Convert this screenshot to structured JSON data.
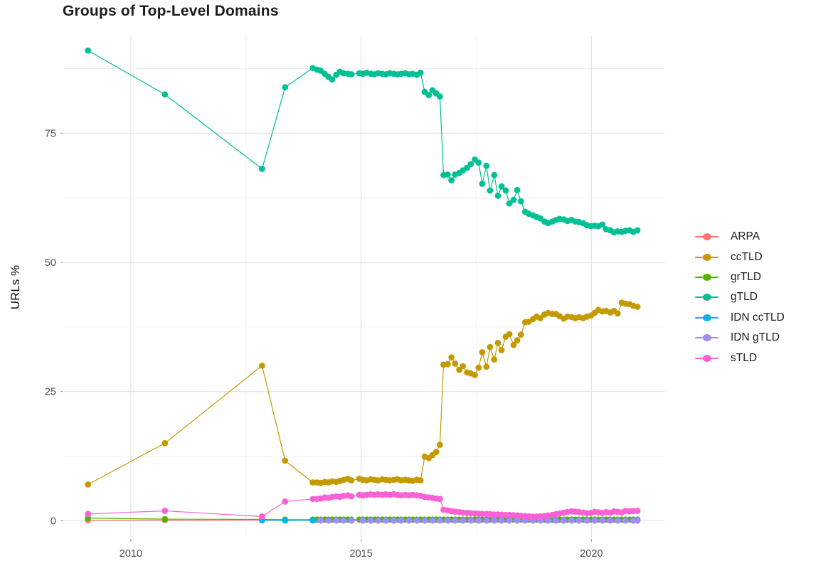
{
  "title": "Groups of Top-Level Domains",
  "axes": {
    "y_title": "URLs %",
    "y_tick_labels": [
      "0",
      "25",
      "50",
      "75"
    ],
    "x_tick_labels": [
      "2010",
      "2015",
      "2020"
    ]
  },
  "legend": {
    "position": "right",
    "items": [
      {
        "label": "ARPA",
        "color": "#F8766D"
      },
      {
        "label": "ccTLD",
        "color": "#C49A00"
      },
      {
        "label": "grTLD",
        "color": "#53B400"
      },
      {
        "label": "gTLD",
        "color": "#00C094"
      },
      {
        "label": "IDN ccTLD",
        "color": "#00B6EB"
      },
      {
        "label": "IDN gTLD",
        "color": "#A58AFF"
      },
      {
        "label": "sTLD",
        "color": "#FB61D7"
      }
    ]
  },
  "chart_data": {
    "type": "line",
    "title": "Groups of Top-Level Domains",
    "xlabel": "",
    "ylabel": "URLs %",
    "xlim": [
      2008.55,
      2021.6
    ],
    "ylim": [
      -3.4,
      93.9
    ],
    "x_major_ticks": [
      2010,
      2015,
      2020
    ],
    "x_minor_ticks": [
      2012.5,
      2017.5
    ],
    "y_major_ticks": [
      0,
      25,
      50,
      75
    ],
    "y_minor_ticks": [
      12.5,
      37.5,
      62.5,
      87.5
    ],
    "grid": true,
    "legend_position": "right",
    "x_common": [
      2009.07,
      2010.74,
      2012.85,
      2013.35,
      2013.95,
      2014.04,
      2014.12,
      2014.21,
      2014.29,
      2014.37,
      2014.46,
      2014.54,
      2014.62,
      2014.71,
      2014.79,
      2014.96,
      2015.04,
      2015.12,
      2015.21,
      2015.29,
      2015.37,
      2015.46,
      2015.54,
      2015.62,
      2015.71,
      2015.79,
      2015.87,
      2015.96,
      2016.04,
      2016.12,
      2016.21,
      2016.29,
      2016.38,
      2016.47,
      2016.55,
      2016.63,
      2016.71,
      2016.79,
      2016.88,
      2016.96,
      2017.04,
      2017.13,
      2017.21,
      2017.3,
      2017.38,
      2017.47,
      2017.55,
      2017.63,
      2017.72,
      2017.8,
      2017.89,
      2017.97,
      2018.05,
      2018.14,
      2018.22,
      2018.31,
      2018.39,
      2018.47,
      2018.56,
      2018.64,
      2018.73,
      2018.81,
      2018.89,
      2018.98,
      2019.06,
      2019.15,
      2019.23,
      2019.31,
      2019.4,
      2019.48,
      2019.57,
      2019.65,
      2019.73,
      2019.82,
      2019.9,
      2019.99,
      2020.07,
      2020.15,
      2020.24,
      2020.32,
      2020.41,
      2020.49,
      2020.57,
      2020.66,
      2020.74,
      2020.83,
      2020.91,
      2021.0
    ],
    "series": [
      {
        "name": "ARPA",
        "color": "#F8766D",
        "x": [
          2009.07,
          2010.74,
          2012.85,
          2013.35,
          2013.95,
          2014.12,
          2014.29,
          2014.46,
          2014.62,
          2014.79,
          2015.04,
          2015.21,
          2015.37,
          2015.54,
          2015.71,
          2015.87,
          2016.04,
          2016.21,
          2016.38,
          2016.55,
          2016.71,
          2016.88,
          2017.04,
          2017.21,
          2017.38,
          2017.55,
          2017.72,
          2017.89,
          2018.05,
          2018.22,
          2018.39,
          2018.56,
          2018.73,
          2018.89,
          2019.06,
          2019.23,
          2019.4,
          2019.57,
          2019.73,
          2019.9,
          2020.07,
          2020.24,
          2020.41,
          2020.57,
          2020.74,
          2020.91,
          2021.0
        ],
        "y": [
          0.1,
          0.1,
          0.08,
          0.06,
          0.05,
          0.05,
          0.05,
          0.05,
          0.05,
          0.05,
          0.05,
          0.05,
          0.05,
          0.05,
          0.05,
          0.05,
          0.05,
          0.05,
          0.05,
          0.05,
          0.05,
          0.05,
          0.05,
          0.05,
          0.05,
          0.05,
          0.05,
          0.05,
          0.05,
          0.05,
          0.05,
          0.05,
          0.05,
          0.05,
          0.05,
          0.05,
          0.05,
          0.05,
          0.05,
          0.05,
          0.05,
          0.05,
          0.05,
          0.05,
          0.05,
          0.05,
          0.05
        ]
      },
      {
        "name": "ccTLD",
        "color": "#C49A00",
        "x": "common",
        "y": [
          7.0,
          15.0,
          30.0,
          11.6,
          7.4,
          7.4,
          7.3,
          7.5,
          7.4,
          7.6,
          7.5,
          7.7,
          7.9,
          8.1,
          7.8,
          8.1,
          7.9,
          7.8,
          8.0,
          7.9,
          7.8,
          8.0,
          7.9,
          7.8,
          7.9,
          8.0,
          7.8,
          7.9,
          7.8,
          7.7,
          7.9,
          7.8,
          12.4,
          12.1,
          12.7,
          13.3,
          14.7,
          30.2,
          30.3,
          31.6,
          30.4,
          29.2,
          29.9,
          28.7,
          28.5,
          28.2,
          29.6,
          32.6,
          29.8,
          33.6,
          31.2,
          34.4,
          33.0,
          35.6,
          36.1,
          34.0,
          34.9,
          36.0,
          38.4,
          38.5,
          39.0,
          39.5,
          39.2,
          39.9,
          40.2,
          40.0,
          40.0,
          39.6,
          39.1,
          39.5,
          39.4,
          39.2,
          39.4,
          39.2,
          39.5,
          39.7,
          40.2,
          40.8,
          40.5,
          40.6,
          40.3,
          40.6,
          40.1,
          42.2,
          42.0,
          41.9,
          41.6,
          41.4
        ]
      },
      {
        "name": "grTLD",
        "color": "#53B400",
        "x": "common",
        "y": [
          0.5,
          0.3,
          0.25,
          0.2,
          0.2,
          0.2,
          0.2,
          0.2,
          0.2,
          0.2,
          0.2,
          0.2,
          0.2,
          0.2,
          0.2,
          0.2,
          0.2,
          0.2,
          0.2,
          0.2,
          0.2,
          0.2,
          0.2,
          0.2,
          0.2,
          0.2,
          0.2,
          0.2,
          0.2,
          0.2,
          0.2,
          0.2,
          0.2,
          0.2,
          0.2,
          0.2,
          0.2,
          0.2,
          0.2,
          0.2,
          0.2,
          0.2,
          0.2,
          0.2,
          0.2,
          0.2,
          0.2,
          0.2,
          0.2,
          0.2,
          0.2,
          0.2,
          0.2,
          0.2,
          0.2,
          0.2,
          0.2,
          0.2,
          0.2,
          0.2,
          0.2,
          0.2,
          0.2,
          0.2,
          0.2,
          0.2,
          0.2,
          0.2,
          0.2,
          0.2,
          0.2,
          0.2,
          0.2,
          0.2,
          0.2,
          0.2,
          0.2,
          0.2,
          0.2,
          0.2,
          0.2,
          0.2,
          0.2,
          0.2,
          0.2,
          0.2,
          0.2,
          0.2
        ]
      },
      {
        "name": "gTLD",
        "color": "#00C094",
        "x": "common",
        "y": [
          91.0,
          82.5,
          68.1,
          83.9,
          87.6,
          87.3,
          87.1,
          86.5,
          85.9,
          85.4,
          86.3,
          86.9,
          86.6,
          86.5,
          86.4,
          86.6,
          86.5,
          86.7,
          86.5,
          86.4,
          86.6,
          86.5,
          86.4,
          86.6,
          86.5,
          86.4,
          86.5,
          86.6,
          86.4,
          86.5,
          86.3,
          86.7,
          83.0,
          82.4,
          83.3,
          82.7,
          82.1,
          66.9,
          67.0,
          65.9,
          67.0,
          67.3,
          67.8,
          68.3,
          69.0,
          69.9,
          69.3,
          65.2,
          68.7,
          63.9,
          66.9,
          62.9,
          64.7,
          63.9,
          61.4,
          62.1,
          64.0,
          61.8,
          59.8,
          59.4,
          59.1,
          58.8,
          58.5,
          57.9,
          57.6,
          57.9,
          58.2,
          58.4,
          58.3,
          58.0,
          58.2,
          57.9,
          57.8,
          57.6,
          57.2,
          57.0,
          57.1,
          57.0,
          57.3,
          56.4,
          56.2,
          55.8,
          56.0,
          55.9,
          56.1,
          56.2,
          55.9,
          56.2
        ]
      },
      {
        "name": "IDN ccTLD",
        "color": "#00B6EB",
        "x": [
          2012.85,
          2013.35,
          2013.95,
          2014.12,
          2014.29,
          2014.46,
          2014.62,
          2014.79,
          2015.04,
          2015.21,
          2015.37,
          2015.54,
          2015.71,
          2015.87,
          2016.04,
          2016.21,
          2016.38,
          2016.55,
          2016.71,
          2016.88,
          2017.04,
          2017.21,
          2017.38,
          2017.55,
          2017.72,
          2017.89,
          2018.05,
          2018.22,
          2018.39,
          2018.56,
          2018.73,
          2018.89,
          2019.06,
          2019.23,
          2019.4,
          2019.57,
          2019.73,
          2019.9,
          2020.07,
          2020.24,
          2020.41,
          2020.57,
          2020.74,
          2020.91,
          2021.0
        ],
        "y": [
          0.05,
          0.05,
          0.05,
          0.05,
          0.05,
          0.05,
          0.05,
          0.05,
          0.05,
          0.05,
          0.05,
          0.05,
          0.05,
          0.05,
          0.05,
          0.05,
          0.05,
          0.05,
          0.05,
          0.05,
          0.05,
          0.05,
          0.05,
          0.05,
          0.05,
          0.05,
          0.05,
          0.05,
          0.05,
          0.05,
          0.05,
          0.05,
          0.05,
          0.05,
          0.05,
          0.05,
          0.05,
          0.05,
          0.05,
          0.05,
          0.05,
          0.05,
          0.05,
          0.05,
          0.05
        ]
      },
      {
        "name": "IDN gTLD",
        "color": "#A58AFF",
        "x": [
          2014.12,
          2014.29,
          2014.46,
          2014.62,
          2014.79,
          2015.04,
          2015.21,
          2015.37,
          2015.54,
          2015.71,
          2015.87,
          2016.04,
          2016.21,
          2016.38,
          2016.55,
          2016.71,
          2016.88,
          2017.04,
          2017.21,
          2017.38,
          2017.55,
          2017.72,
          2017.89,
          2018.05,
          2018.22,
          2018.39,
          2018.56,
          2018.73,
          2018.89,
          2019.06,
          2019.23,
          2019.4,
          2019.57,
          2019.73,
          2019.9,
          2020.07,
          2020.24,
          2020.41,
          2020.57,
          2020.74,
          2020.91,
          2021.0
        ],
        "y": [
          0.02,
          0.02,
          0.02,
          0.02,
          0.02,
          0.02,
          0.02,
          0.02,
          0.02,
          0.02,
          0.02,
          0.02,
          0.02,
          0.02,
          0.02,
          0.02,
          0.02,
          0.02,
          0.02,
          0.02,
          0.02,
          0.02,
          0.02,
          0.02,
          0.02,
          0.02,
          0.02,
          0.02,
          0.02,
          0.02,
          0.02,
          0.02,
          0.02,
          0.02,
          0.02,
          0.02,
          0.02,
          0.02,
          0.02,
          0.02,
          0.02,
          0.02
        ]
      },
      {
        "name": "sTLD",
        "color": "#FB61D7",
        "x": "common",
        "y": [
          1.3,
          1.9,
          0.8,
          3.7,
          4.2,
          4.2,
          4.3,
          4.5,
          4.4,
          4.6,
          4.7,
          4.6,
          4.8,
          4.9,
          4.7,
          5.0,
          4.9,
          5.0,
          5.1,
          5.0,
          5.1,
          5.0,
          5.1,
          5.0,
          5.1,
          5.0,
          4.9,
          5.0,
          4.9,
          5.0,
          4.9,
          4.8,
          4.6,
          4.5,
          4.4,
          4.3,
          4.2,
          2.1,
          2.0,
          1.85,
          1.75,
          1.65,
          1.55,
          1.5,
          1.45,
          1.4,
          1.35,
          1.3,
          1.3,
          1.25,
          1.2,
          1.2,
          1.15,
          1.1,
          1.1,
          1.05,
          1.0,
          0.95,
          0.9,
          0.85,
          0.8,
          0.8,
          0.85,
          0.9,
          1.0,
          1.1,
          1.25,
          1.4,
          1.55,
          1.7,
          1.8,
          1.75,
          1.65,
          1.55,
          1.45,
          1.5,
          1.7,
          1.6,
          1.5,
          1.65,
          1.55,
          1.8,
          1.7,
          1.6,
          1.9,
          1.8,
          1.85,
          1.9
        ]
      }
    ]
  }
}
